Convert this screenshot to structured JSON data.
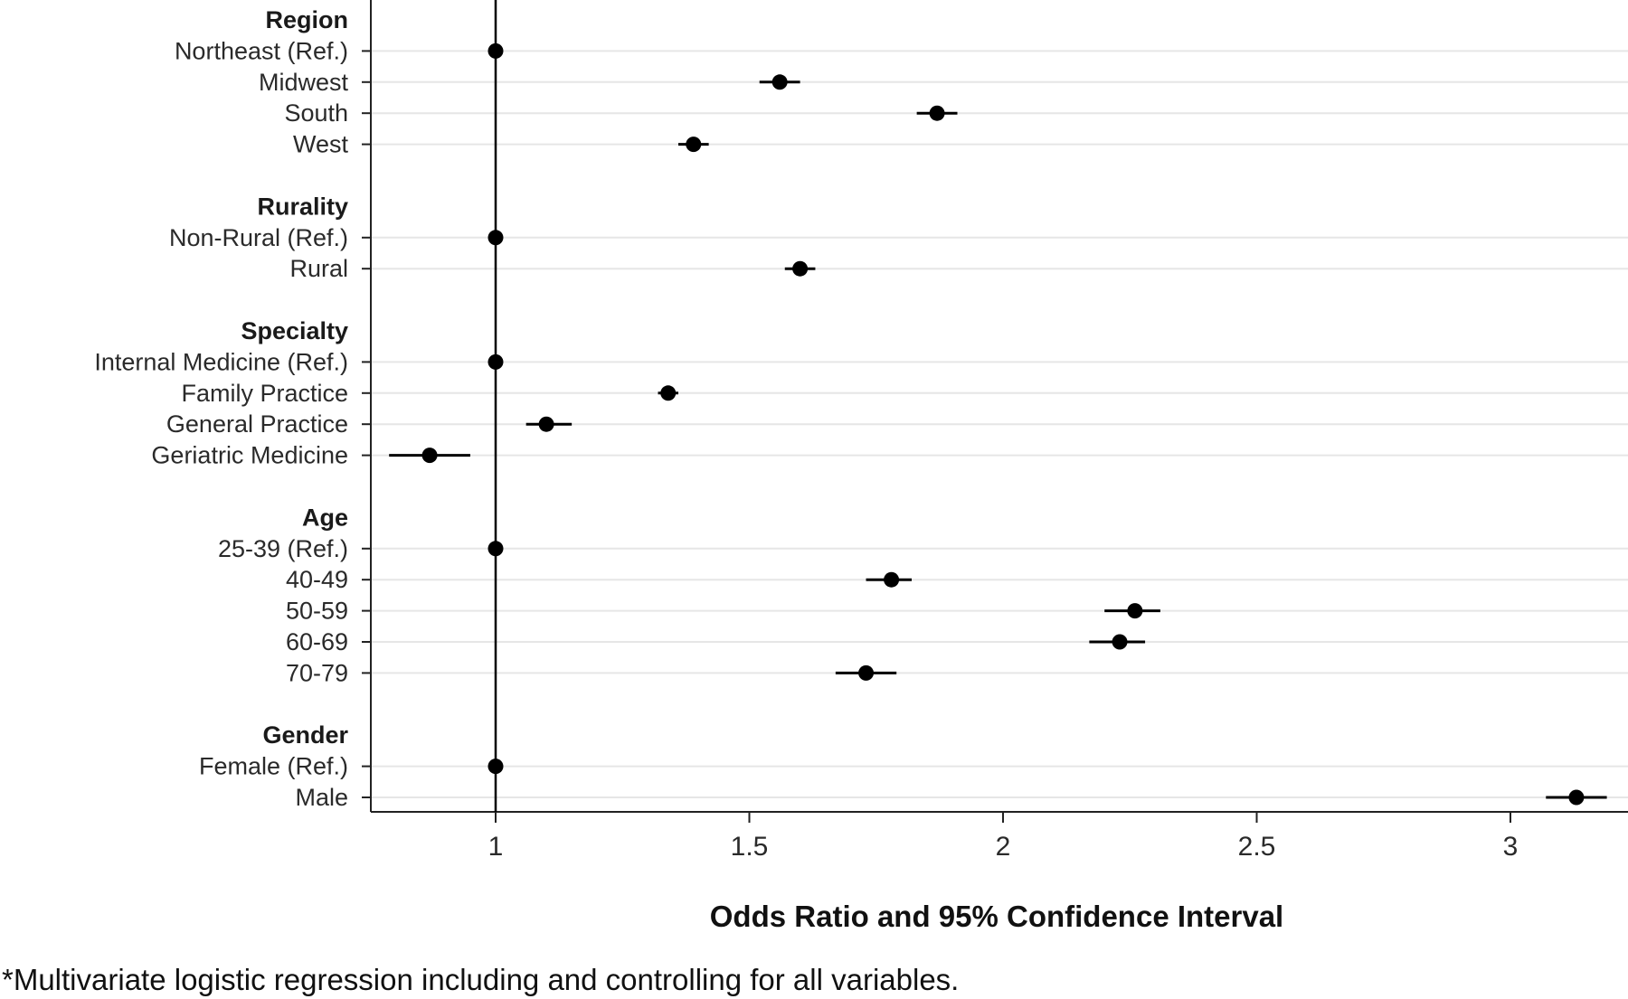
{
  "chart_data": {
    "type": "scatter",
    "subtype": "forest-plot",
    "xlabel": "Odds Ratio and 95% Confidence Interval",
    "xlim": [
      0.75,
      3.25
    ],
    "xticks": [
      1,
      1.5,
      2,
      2.5,
      3
    ],
    "xtick_labels": [
      "1",
      "1.5",
      "2",
      "2.5",
      "3"
    ],
    "reference_line": 1,
    "horizontal_grid": true,
    "footnote": "*Multivariate logistic regression including and controlling for all variables.",
    "groups": [
      {
        "label": "Region",
        "rows": [
          {
            "label": "Northeast (Ref.)",
            "or": 1.0,
            "lo": 1.0,
            "hi": 1.0
          },
          {
            "label": "Midwest",
            "or": 1.56,
            "lo": 1.52,
            "hi": 1.6
          },
          {
            "label": "South",
            "or": 1.87,
            "lo": 1.83,
            "hi": 1.91
          },
          {
            "label": "West",
            "or": 1.39,
            "lo": 1.36,
            "hi": 1.42
          }
        ]
      },
      {
        "label": "Rurality",
        "rows": [
          {
            "label": "Non-Rural (Ref.)",
            "or": 1.0,
            "lo": 1.0,
            "hi": 1.0
          },
          {
            "label": "Rural",
            "or": 1.6,
            "lo": 1.57,
            "hi": 1.63
          }
        ]
      },
      {
        "label": "Specialty",
        "rows": [
          {
            "label": "Internal Medicine (Ref.)",
            "or": 1.0,
            "lo": 1.0,
            "hi": 1.0
          },
          {
            "label": "Family Practice",
            "or": 1.34,
            "lo": 1.32,
            "hi": 1.36
          },
          {
            "label": "General Practice",
            "or": 1.1,
            "lo": 1.06,
            "hi": 1.15
          },
          {
            "label": "Geriatric Medicine",
            "or": 0.87,
            "lo": 0.79,
            "hi": 0.95
          }
        ]
      },
      {
        "label": "Age",
        "rows": [
          {
            "label": "25-39 (Ref.)",
            "or": 1.0,
            "lo": 1.0,
            "hi": 1.0
          },
          {
            "label": "40-49",
            "or": 1.78,
            "lo": 1.73,
            "hi": 1.82
          },
          {
            "label": "50-59",
            "or": 2.26,
            "lo": 2.2,
            "hi": 2.31
          },
          {
            "label": "60-69",
            "or": 2.23,
            "lo": 2.17,
            "hi": 2.28
          },
          {
            "label": "70-79",
            "or": 1.73,
            "lo": 1.67,
            "hi": 1.79
          }
        ]
      },
      {
        "label": "Gender",
        "rows": [
          {
            "label": "Female (Ref.)",
            "or": 1.0,
            "lo": 1.0,
            "hi": 1.0
          },
          {
            "label": "Male",
            "or": 3.13,
            "lo": 3.07,
            "hi": 3.19
          }
        ]
      }
    ]
  }
}
